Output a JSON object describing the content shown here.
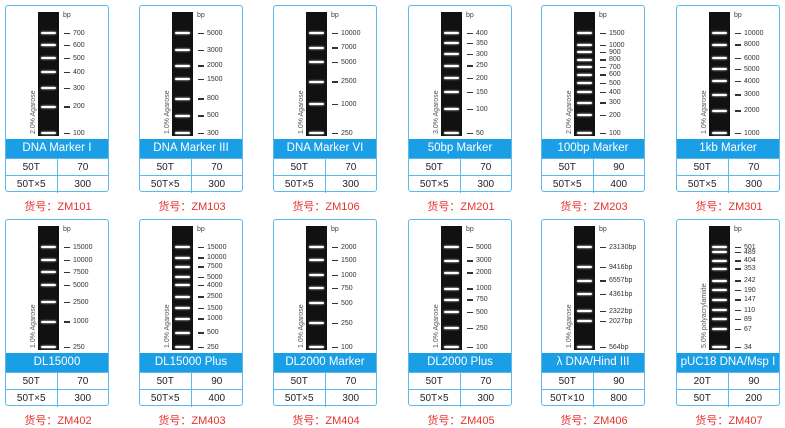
{
  "accent_blue": "#1a9fe6",
  "catalog_red": "#e8322c",
  "cards": [
    {
      "title": "DNA Marker Ⅰ",
      "gel": "2.0% Agarose",
      "unit": "bp",
      "markers": [
        "700",
        "600",
        "500",
        "400",
        "300",
        "200",
        "100"
      ],
      "rows": [
        [
          "50T",
          "70"
        ],
        [
          "50T×5",
          "300"
        ]
      ],
      "catalog": "货号：ZM101"
    },
    {
      "title": "DNA Marker III",
      "gel": "1.0% Agarose",
      "unit": "bp",
      "markers": [
        "5000",
        "3000",
        "2000",
        "1500",
        "800",
        "500",
        "300"
      ],
      "rows": [
        [
          "50T",
          "70"
        ],
        [
          "50T×5",
          "300"
        ]
      ],
      "catalog": "货号：ZM103"
    },
    {
      "title": "DNA Marker VI",
      "gel": "1.0% Agarose",
      "unit": "bp",
      "markers": [
        "10000",
        "7000",
        "5000",
        "2500",
        "1000",
        "250"
      ],
      "rows": [
        [
          "50T",
          "70"
        ],
        [
          "50T×5",
          "300"
        ]
      ],
      "catalog": "货号：ZM106"
    },
    {
      "title": "50bp Marker",
      "gel": "3.0% Agarose",
      "unit": "bp",
      "markers": [
        "400",
        "350",
        "300",
        "250",
        "200",
        "150",
        "100",
        "50"
      ],
      "rows": [
        [
          "50T",
          "70"
        ],
        [
          "50T×5",
          "300"
        ]
      ],
      "catalog": "货号：ZM201"
    },
    {
      "title": "100bp Marker",
      "gel": "2.0% Agarose",
      "unit": "bp",
      "markers": [
        "1500",
        "1000",
        "900",
        "800",
        "700",
        "600",
        "500",
        "400",
        "300",
        "200",
        "100"
      ],
      "rows": [
        [
          "50T",
          "90"
        ],
        [
          "50T×5",
          "400"
        ]
      ],
      "catalog": "货号：ZM203"
    },
    {
      "title": "1kb Marker",
      "gel": "1.0% Agarose",
      "unit": "bp",
      "markers": [
        "10000",
        "8000",
        "6000",
        "5000",
        "4000",
        "3000",
        "2000",
        "1000"
      ],
      "rows": [
        [
          "50T",
          "70"
        ],
        [
          "50T×5",
          "300"
        ]
      ],
      "catalog": "货号：ZM301"
    },
    {
      "title": "DL15000",
      "gel": "1.0% Agarose",
      "unit": "bp",
      "markers": [
        "15000",
        "10000",
        "7500",
        "5000",
        "2500",
        "1000",
        "250"
      ],
      "rows": [
        [
          "50T",
          "70"
        ],
        [
          "50T×5",
          "300"
        ]
      ],
      "catalog": "货号：ZM402"
    },
    {
      "title": "DL15000 Plus",
      "gel": "1.0% Agarose",
      "unit": "bp",
      "markers": [
        "15000",
        "10000",
        "7500",
        "5000",
        "4000",
        "2500",
        "1500",
        "1000",
        "500",
        "250"
      ],
      "rows": [
        [
          "50T",
          "90"
        ],
        [
          "50T×5",
          "400"
        ]
      ],
      "catalog": "货号：ZM403"
    },
    {
      "title": "DL2000 Marker",
      "gel": "1.0% Agarose",
      "unit": "bp",
      "markers": [
        "2000",
        "1500",
        "1000",
        "750",
        "500",
        "250",
        "100"
      ],
      "rows": [
        [
          "50T",
          "70"
        ],
        [
          "50T×5",
          "300"
        ]
      ],
      "catalog": "货号：ZM404"
    },
    {
      "title": "DL2000 Plus",
      "gel": "1.0% Agarose",
      "unit": "bp",
      "markers": [
        "5000",
        "3000",
        "2000",
        "1000",
        "750",
        "500",
        "250",
        "100"
      ],
      "rows": [
        [
          "50T",
          "70"
        ],
        [
          "50T×5",
          "300"
        ]
      ],
      "catalog": "货号：ZM405"
    },
    {
      "title": "λ DNA/Hind III",
      "gel": "1.0% Agarose",
      "unit": "bp",
      "markers": [
        "23130bp",
        "9416bp",
        "6557bp",
        "4361bp",
        "2322bp",
        "2027bp",
        "564bp"
      ],
      "rows": [
        [
          "50T",
          "90"
        ],
        [
          "50T×10",
          "800"
        ]
      ],
      "catalog": "货号：ZM406"
    },
    {
      "title": "pUC18 DNA/Msp Ⅰ",
      "gel": "5.0% polyacrylamide",
      "unit": "bp",
      "markers": [
        "501",
        "489",
        "404",
        "353",
        "242",
        "190",
        "147",
        "110",
        "89",
        "67",
        "34"
      ],
      "rows": [
        [
          "20T",
          "90"
        ],
        [
          "50T",
          "200"
        ]
      ],
      "catalog": "货号：ZM407"
    }
  ]
}
